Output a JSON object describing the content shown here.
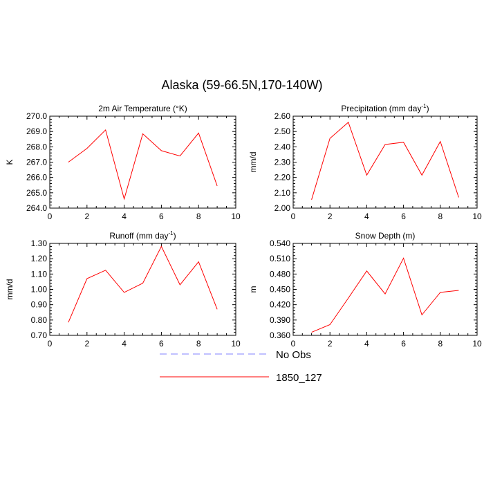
{
  "figure": {
    "title": "Alaska (59-66.5N,170-140W)"
  },
  "legend": {
    "position": "bottom-center",
    "items": [
      {
        "label": "No Obs",
        "color": "#8080ff",
        "style": "dashed"
      },
      {
        "label": "1850_127",
        "color": "#ff0000",
        "style": "solid"
      }
    ]
  },
  "chart_data": [
    {
      "type": "line",
      "title": "2m Air Temperature (°K)",
      "xlabel": "",
      "ylabel": "K",
      "xlim": [
        0,
        10
      ],
      "ylim": [
        264.0,
        270.0
      ],
      "xticks": [
        0,
        2,
        4,
        6,
        8,
        10
      ],
      "yticks": [
        264.0,
        265.0,
        266.0,
        267.0,
        268.0,
        269.0,
        270.0
      ],
      "ytick_labels": [
        "264.0",
        "265.0",
        "266.0",
        "267.0",
        "268.0",
        "269.0",
        "270.0"
      ],
      "series": [
        {
          "name": "1850_127",
          "color": "#ff0000",
          "x": [
            1,
            2,
            3,
            4,
            5,
            6,
            7,
            8,
            9
          ],
          "values": [
            267.0,
            267.9,
            269.1,
            264.6,
            268.85,
            267.75,
            267.4,
            268.9,
            265.45
          ]
        }
      ]
    },
    {
      "type": "line",
      "title": "Precipitation (mm day-1)",
      "title_parts": [
        "Precipitation (mm day",
        "-1",
        ")"
      ],
      "xlabel": "",
      "ylabel": "mm/d",
      "xlim": [
        0,
        10
      ],
      "ylim": [
        2.0,
        2.6
      ],
      "xticks": [
        0,
        2,
        4,
        6,
        8,
        10
      ],
      "yticks": [
        2.0,
        2.1,
        2.2,
        2.3,
        2.4,
        2.5,
        2.6
      ],
      "ytick_labels": [
        "2.00",
        "2.10",
        "2.20",
        "2.30",
        "2.40",
        "2.50",
        "2.60"
      ],
      "series": [
        {
          "name": "1850_127",
          "color": "#ff0000",
          "x": [
            1,
            2,
            3,
            4,
            5,
            6,
            7,
            8,
            9
          ],
          "values": [
            2.055,
            2.455,
            2.56,
            2.215,
            2.415,
            2.43,
            2.215,
            2.435,
            2.07
          ]
        }
      ]
    },
    {
      "type": "line",
      "title": "Runoff (mm day-1)",
      "title_parts": [
        "Runoff (mm day",
        "-1",
        ")"
      ],
      "xlabel": "",
      "ylabel": "mm/d",
      "xlim": [
        0,
        10
      ],
      "ylim": [
        0.7,
        1.3
      ],
      "xticks": [
        0,
        2,
        4,
        6,
        8,
        10
      ],
      "yticks": [
        0.7,
        0.8,
        0.9,
        1.0,
        1.1,
        1.2,
        1.3
      ],
      "ytick_labels": [
        "0.70",
        "0.80",
        "0.90",
        "1.00",
        "1.10",
        "1.20",
        "1.30"
      ],
      "series": [
        {
          "name": "1850_127",
          "color": "#ff0000",
          "x": [
            1,
            2,
            3,
            4,
            5,
            6,
            7,
            8,
            9
          ],
          "values": [
            0.785,
            1.07,
            1.125,
            0.98,
            1.04,
            1.28,
            1.03,
            1.18,
            0.87
          ]
        }
      ]
    },
    {
      "type": "line",
      "title": "Snow Depth (m)",
      "xlabel": "",
      "ylabel": "m",
      "xlim": [
        0,
        10
      ],
      "ylim": [
        0.36,
        0.54
      ],
      "xticks": [
        0,
        2,
        4,
        6,
        8,
        10
      ],
      "yticks": [
        0.36,
        0.39,
        0.42,
        0.45,
        0.48,
        0.51,
        0.54
      ],
      "ytick_labels": [
        "0.360",
        "0.390",
        "0.420",
        "0.450",
        "0.480",
        "0.510",
        "0.540"
      ],
      "series": [
        {
          "name": "1850_127",
          "color": "#ff0000",
          "x": [
            1,
            2,
            3,
            4,
            5,
            6,
            7,
            8,
            9
          ],
          "values": [
            0.366,
            0.381,
            0.433,
            0.486,
            0.441,
            0.511,
            0.4,
            0.444,
            0.448
          ]
        }
      ]
    }
  ]
}
